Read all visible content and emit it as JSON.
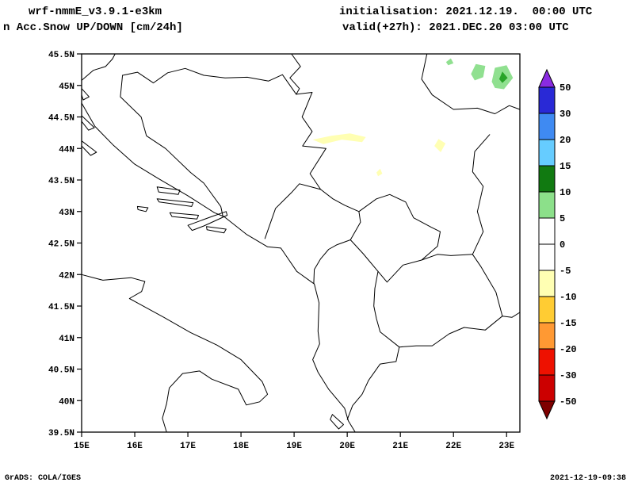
{
  "header": {
    "model_title": "wrf-nmmE_v3.9.1-e3km",
    "field_title": "n Acc.Snow UP/DOWN [cm/24h]",
    "init_label": "initialisation: 2021.12.19.  00:00 UTC",
    "valid_label": "valid(+27h): 2021.DEC.20 03:00 UTC"
  },
  "footer": {
    "credit": "GrADS: COLA/IGES",
    "timestamp": "2021-12-19-09:38"
  },
  "map": {
    "lat_ticks": [
      "45.5N",
      "45N",
      "44.5N",
      "44N",
      "43.5N",
      "43N",
      "42.5N",
      "42N",
      "41.5N",
      "41N",
      "40.5N",
      "40N",
      "39.5N"
    ],
    "lon_ticks": [
      "15E",
      "16E",
      "17E",
      "18E",
      "19E",
      "20E",
      "21E",
      "22E",
      "23E"
    ],
    "lat_range": [
      39.5,
      45.5
    ],
    "lon_range": [
      15,
      23.25
    ]
  },
  "colorbar": {
    "units": "cm/24h",
    "levels": [
      50,
      30,
      20,
      15,
      10,
      5,
      0,
      -5,
      -10,
      -15,
      -20,
      -30,
      -50
    ],
    "arrow_top_color": "#8a2be2",
    "arrow_bottom_color": "#7e0000",
    "segment_colors": [
      "#2929d6",
      "#3f8af2",
      "#66ccff",
      "#117a11",
      "#8ce08a",
      "#ffffff",
      "#ffffff",
      "#ffffb3",
      "#ffcc33",
      "#ff9933",
      "#ee1100",
      "#cc0000"
    ]
  },
  "geo": {
    "polylines": [
      {
        "name": "coastline-adriatic-east",
        "closed": false,
        "points": [
          [
            15.0,
            44.72
          ],
          [
            15.25,
            44.35
          ],
          [
            15.6,
            44.05
          ],
          [
            16.0,
            43.75
          ],
          [
            16.45,
            43.52
          ],
          [
            17.0,
            43.25
          ],
          [
            17.5,
            42.98
          ],
          [
            17.68,
            42.92
          ],
          [
            18.1,
            42.64
          ],
          [
            18.5,
            42.44
          ],
          [
            18.75,
            42.42
          ],
          [
            19.05,
            42.05
          ],
          [
            19.38,
            41.85
          ],
          [
            19.47,
            41.55
          ],
          [
            19.45,
            41.1
          ],
          [
            19.48,
            40.9
          ],
          [
            19.35,
            40.65
          ],
          [
            19.45,
            40.45
          ],
          [
            19.65,
            40.18
          ],
          [
            19.95,
            39.88
          ],
          [
            20.02,
            39.68
          ],
          [
            20.15,
            39.5
          ]
        ]
      },
      {
        "name": "coastline-italy",
        "closed": false,
        "points": [
          [
            15.0,
            42.0
          ],
          [
            15.4,
            41.91
          ],
          [
            15.93,
            41.95
          ],
          [
            16.19,
            41.89
          ],
          [
            16.13,
            41.73
          ],
          [
            15.9,
            41.62
          ],
          [
            16.55,
            41.32
          ],
          [
            17.05,
            41.08
          ],
          [
            17.55,
            40.88
          ],
          [
            18.0,
            40.65
          ],
          [
            18.4,
            40.3
          ],
          [
            18.5,
            40.1
          ],
          [
            18.35,
            39.98
          ],
          [
            18.1,
            39.93
          ],
          [
            17.95,
            40.18
          ],
          [
            17.45,
            40.34
          ],
          [
            17.22,
            40.47
          ],
          [
            16.9,
            40.43
          ],
          [
            16.65,
            40.2
          ],
          [
            16.6,
            39.95
          ],
          [
            16.52,
            39.72
          ],
          [
            16.6,
            39.5
          ]
        ]
      },
      {
        "name": "border-slovenia-croatia",
        "closed": false,
        "points": [
          [
            15.0,
            45.08
          ],
          [
            15.22,
            45.24
          ],
          [
            15.45,
            45.3
          ],
          [
            15.58,
            45.42
          ],
          [
            15.63,
            45.5
          ]
        ]
      },
      {
        "name": "border-croatia-bosnia-north",
        "closed": false,
        "points": [
          [
            15.77,
            45.16
          ],
          [
            16.05,
            45.21
          ],
          [
            16.35,
            45.04
          ],
          [
            16.62,
            45.2
          ],
          [
            16.95,
            45.27
          ],
          [
            17.3,
            45.16
          ],
          [
            17.7,
            45.12
          ],
          [
            18.12,
            45.13
          ],
          [
            18.52,
            45.07
          ],
          [
            18.78,
            45.17
          ],
          [
            19.04,
            44.86
          ]
        ]
      },
      {
        "name": "border-croatia-serbia",
        "closed": false,
        "points": [
          [
            18.95,
            45.5
          ],
          [
            19.12,
            45.3
          ],
          [
            18.92,
            45.12
          ],
          [
            19.1,
            44.95
          ],
          [
            19.04,
            44.86
          ]
        ]
      },
      {
        "name": "border-bosnia-serbia-drina",
        "closed": false,
        "points": [
          [
            19.04,
            44.86
          ],
          [
            19.34,
            44.89
          ],
          [
            19.15,
            44.5
          ],
          [
            19.34,
            44.27
          ],
          [
            19.16,
            44.04
          ],
          [
            19.6,
            44.0
          ],
          [
            19.3,
            43.6
          ],
          [
            19.5,
            43.35
          ],
          [
            19.1,
            43.44
          ],
          [
            18.95,
            43.3
          ],
          [
            18.65,
            43.05
          ],
          [
            18.45,
            42.57
          ]
        ]
      },
      {
        "name": "border-croatia-bosnia-west",
        "closed": false,
        "points": [
          [
            15.77,
            45.16
          ],
          [
            15.73,
            44.82
          ],
          [
            16.12,
            44.5
          ],
          [
            16.22,
            44.2
          ],
          [
            16.58,
            44.0
          ],
          [
            17.05,
            43.62
          ],
          [
            17.3,
            43.45
          ],
          [
            17.62,
            43.08
          ],
          [
            17.66,
            42.92
          ]
        ]
      },
      {
        "name": "border-serbia-romania",
        "closed": false,
        "points": [
          [
            21.5,
            45.5
          ],
          [
            21.4,
            45.1
          ],
          [
            21.6,
            44.85
          ],
          [
            22.0,
            44.62
          ],
          [
            22.45,
            44.64
          ],
          [
            22.78,
            44.55
          ],
          [
            23.05,
            44.68
          ],
          [
            23.25,
            44.62
          ]
        ]
      },
      {
        "name": "border-serbia-bulgaria",
        "closed": false,
        "points": [
          [
            22.68,
            44.22
          ],
          [
            22.4,
            43.95
          ],
          [
            22.36,
            43.63
          ],
          [
            22.56,
            43.4
          ],
          [
            22.45,
            43.0
          ],
          [
            22.56,
            42.68
          ],
          [
            22.36,
            42.32
          ]
        ]
      },
      {
        "name": "border-bulgaria-macedonia",
        "closed": false,
        "points": [
          [
            22.36,
            42.32
          ],
          [
            22.52,
            42.12
          ],
          [
            22.8,
            41.72
          ],
          [
            22.92,
            41.34
          ]
        ]
      },
      {
        "name": "border-greece-bulgaria",
        "closed": false,
        "points": [
          [
            22.92,
            41.34
          ],
          [
            23.1,
            41.32
          ],
          [
            23.25,
            41.4
          ]
        ]
      },
      {
        "name": "border-macedonia-greece",
        "closed": false,
        "points": [
          [
            22.92,
            41.34
          ],
          [
            22.6,
            41.12
          ],
          [
            22.2,
            41.16
          ],
          [
            21.92,
            41.06
          ],
          [
            21.6,
            40.87
          ],
          [
            21.3,
            40.87
          ],
          [
            20.98,
            40.85
          ]
        ]
      },
      {
        "name": "border-kosovo",
        "closed": true,
        "points": [
          [
            20.06,
            42.55
          ],
          [
            20.25,
            42.83
          ],
          [
            20.22,
            43.0
          ],
          [
            20.55,
            43.2
          ],
          [
            20.8,
            43.27
          ],
          [
            21.1,
            43.15
          ],
          [
            21.25,
            42.9
          ],
          [
            21.58,
            42.75
          ],
          [
            21.75,
            42.68
          ],
          [
            21.7,
            42.45
          ],
          [
            21.4,
            42.23
          ],
          [
            21.05,
            42.15
          ],
          [
            20.75,
            41.88
          ],
          [
            20.58,
            42.05
          ],
          [
            20.3,
            42.33
          ]
        ]
      },
      {
        "name": "border-albania-east",
        "closed": false,
        "points": [
          [
            20.58,
            42.05
          ],
          [
            20.52,
            41.78
          ],
          [
            20.5,
            41.5
          ],
          [
            20.55,
            41.3
          ],
          [
            20.62,
            41.09
          ],
          [
            20.98,
            40.85
          ],
          [
            20.92,
            40.62
          ],
          [
            20.62,
            40.58
          ],
          [
            20.4,
            40.32
          ],
          [
            20.28,
            40.1
          ],
          [
            20.1,
            39.92
          ],
          [
            20.0,
            39.7
          ]
        ]
      },
      {
        "name": "border-montenegro-albania",
        "closed": false,
        "points": [
          [
            19.37,
            41.86
          ],
          [
            19.38,
            42.08
          ],
          [
            19.5,
            42.25
          ],
          [
            19.65,
            42.4
          ],
          [
            19.8,
            42.47
          ],
          [
            20.06,
            42.55
          ]
        ]
      },
      {
        "name": "border-montenegro-serbia",
        "closed": false,
        "points": [
          [
            19.5,
            43.35
          ],
          [
            19.73,
            43.2
          ],
          [
            19.95,
            43.1
          ],
          [
            20.22,
            43.0
          ]
        ]
      },
      {
        "name": "border-macedonia-serbia",
        "closed": false,
        "points": [
          [
            21.4,
            42.23
          ],
          [
            21.7,
            42.32
          ],
          [
            21.95,
            42.3
          ],
          [
            22.36,
            42.32
          ]
        ]
      },
      {
        "name": "island-rab",
        "closed": true,
        "points": [
          [
            15.0,
            44.95
          ],
          [
            15.14,
            44.82
          ],
          [
            15.03,
            44.77
          ],
          [
            15.0,
            44.85
          ]
        ]
      },
      {
        "name": "island-pag",
        "closed": true,
        "points": [
          [
            15.0,
            44.52
          ],
          [
            15.24,
            44.33
          ],
          [
            15.13,
            44.29
          ],
          [
            15.0,
            44.43
          ]
        ]
      },
      {
        "name": "island-dugi-otok",
        "closed": true,
        "points": [
          [
            15.0,
            44.12
          ],
          [
            15.28,
            43.94
          ],
          [
            15.17,
            43.89
          ],
          [
            15.0,
            44.04
          ]
        ]
      },
      {
        "name": "island-brac",
        "closed": true,
        "points": [
          [
            16.42,
            43.39
          ],
          [
            16.85,
            43.34
          ],
          [
            16.82,
            43.27
          ],
          [
            16.45,
            43.31
          ]
        ]
      },
      {
        "name": "island-hvar",
        "closed": true,
        "points": [
          [
            16.42,
            43.2
          ],
          [
            17.1,
            43.14
          ],
          [
            17.07,
            43.08
          ],
          [
            16.46,
            43.15
          ]
        ]
      },
      {
        "name": "island-vis",
        "closed": true,
        "points": [
          [
            16.05,
            43.08
          ],
          [
            16.25,
            43.06
          ],
          [
            16.21,
            43.0
          ],
          [
            16.06,
            43.03
          ]
        ]
      },
      {
        "name": "island-korcula",
        "closed": true,
        "points": [
          [
            16.66,
            42.98
          ],
          [
            17.2,
            42.94
          ],
          [
            17.17,
            42.88
          ],
          [
            16.7,
            42.92
          ]
        ]
      },
      {
        "name": "peninsula-peljesac",
        "closed": true,
        "points": [
          [
            17.0,
            42.78
          ],
          [
            17.45,
            42.92
          ],
          [
            17.72,
            43.0
          ],
          [
            17.74,
            42.94
          ],
          [
            17.3,
            42.77
          ],
          [
            17.08,
            42.7
          ]
        ]
      },
      {
        "name": "island-mljet",
        "closed": true,
        "points": [
          [
            17.35,
            42.76
          ],
          [
            17.72,
            42.72
          ],
          [
            17.68,
            42.66
          ],
          [
            17.36,
            42.71
          ]
        ]
      },
      {
        "name": "island-corfu",
        "closed": true,
        "points": [
          [
            19.72,
            39.78
          ],
          [
            19.93,
            39.62
          ],
          [
            19.84,
            39.55
          ],
          [
            19.68,
            39.7
          ]
        ]
      }
    ],
    "patches": [
      {
        "name": "snow-patch-green-1",
        "value": "5-10",
        "color": "#90e090",
        "points": [
          [
            22.33,
            45.18
          ],
          [
            22.42,
            45.34
          ],
          [
            22.6,
            45.31
          ],
          [
            22.56,
            45.13
          ],
          [
            22.4,
            45.08
          ]
        ]
      },
      {
        "name": "snow-patch-green-2",
        "value": "5-10",
        "color": "#90e090",
        "points": [
          [
            22.72,
            45.06
          ],
          [
            22.78,
            45.28
          ],
          [
            23.0,
            45.32
          ],
          [
            23.12,
            45.12
          ],
          [
            22.95,
            44.94
          ],
          [
            22.78,
            44.96
          ]
        ]
      },
      {
        "name": "snow-patch-green-dark",
        "value": "10-15",
        "color": "#28a428",
        "points": [
          [
            22.86,
            45.1
          ],
          [
            22.92,
            45.22
          ],
          [
            23.02,
            45.12
          ],
          [
            22.92,
            45.04
          ]
        ]
      },
      {
        "name": "snow-patch-green-3",
        "value": "5-10",
        "color": "#90e090",
        "points": [
          [
            21.86,
            45.37
          ],
          [
            21.95,
            45.43
          ],
          [
            22.0,
            45.35
          ],
          [
            21.9,
            45.32
          ]
        ]
      },
      {
        "name": "melt-patch-yellow-1",
        "value": "-5 to -10",
        "color": "#ffffb3",
        "points": [
          [
            19.35,
            44.14
          ],
          [
            19.7,
            44.2
          ],
          [
            20.05,
            44.24
          ],
          [
            20.35,
            44.18
          ],
          [
            20.28,
            44.1
          ],
          [
            19.9,
            44.14
          ],
          [
            19.55,
            44.07
          ]
        ]
      },
      {
        "name": "melt-patch-yellow-2",
        "value": "-5 to -10",
        "color": "#ffffb3",
        "points": [
          [
            21.64,
            44.04
          ],
          [
            21.72,
            44.15
          ],
          [
            21.85,
            44.08
          ],
          [
            21.76,
            43.94
          ]
        ]
      },
      {
        "name": "melt-patch-yellow-3",
        "value": "-5 to -10",
        "color": "#ffffb3",
        "points": [
          [
            20.55,
            43.62
          ],
          [
            20.62,
            43.68
          ],
          [
            20.66,
            43.6
          ],
          [
            20.58,
            43.56
          ]
        ]
      }
    ]
  }
}
